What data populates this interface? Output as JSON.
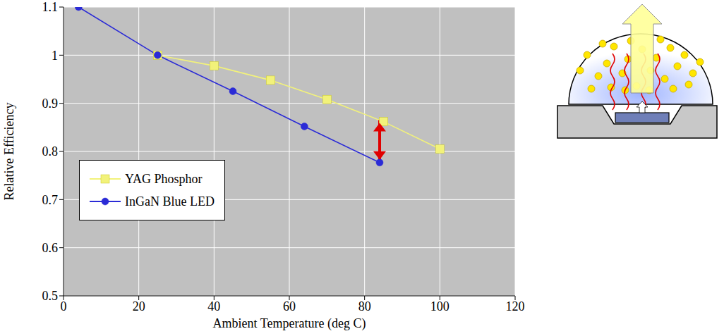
{
  "chart_data": {
    "type": "line",
    "x_label": "Ambient Temperature (deg C)",
    "y_label": "Relative Efficiency",
    "xlim": [
      0,
      120
    ],
    "xticks": [
      0,
      20,
      40,
      60,
      80,
      100,
      120
    ],
    "ylim": [
      0.5,
      1.1
    ],
    "yticks": [
      0.5,
      0.6,
      0.7,
      0.8,
      0.9,
      1,
      1.1
    ],
    "grid": true,
    "legend": "lower left",
    "series": [
      {
        "name": "YAG Phosphor",
        "color": "#f2f27a",
        "marker": "square",
        "x": [
          25,
          40,
          55,
          70,
          85,
          100
        ],
        "values": [
          1.0,
          0.978,
          0.948,
          0.908,
          0.862,
          0.805
        ]
      },
      {
        "name": "InGaN Blue LED",
        "color": "#2b2bd6",
        "marker": "circle",
        "x": [
          4,
          25,
          45,
          64,
          84
        ],
        "values": [
          1.1,
          1.0,
          0.925,
          0.852,
          0.777
        ]
      }
    ]
  }
}
